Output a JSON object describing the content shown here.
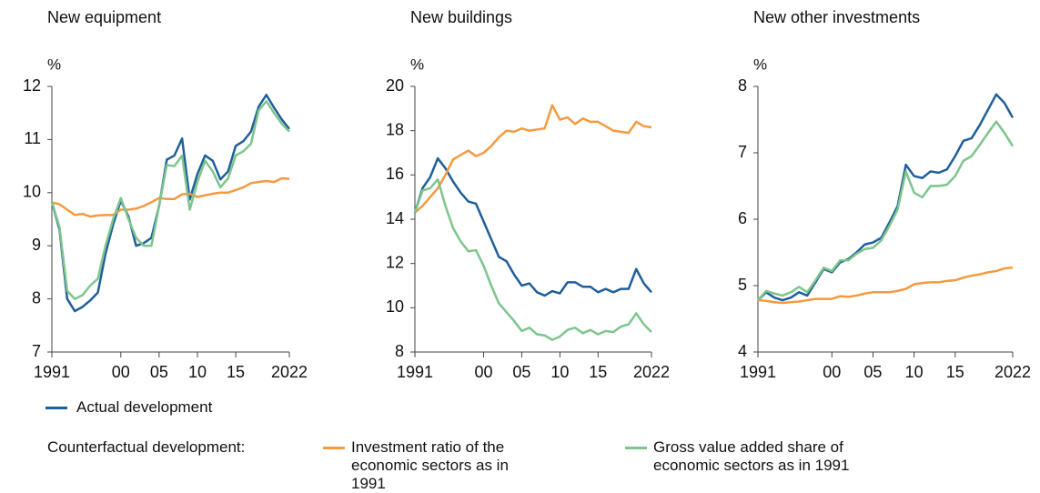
{
  "chart_data": [
    {
      "type": "line",
      "title": "New equipment",
      "ylabel": "%",
      "x": [
        1991,
        1992,
        1993,
        1994,
        1995,
        1996,
        1997,
        1998,
        1999,
        2000,
        2001,
        2002,
        2003,
        2004,
        2005,
        2006,
        2007,
        2008,
        2009,
        2010,
        2011,
        2012,
        2013,
        2014,
        2015,
        2016,
        2017,
        2018,
        2019,
        2020,
        2021,
        2022
      ],
      "xlim": [
        1991,
        2022
      ],
      "xticks": [
        1991,
        {
          "value": 2000,
          "label": "00"
        },
        {
          "value": 2005,
          "label": "05"
        },
        {
          "value": 2010,
          "label": "10"
        },
        {
          "value": 2015,
          "label": "15"
        },
        2022
      ],
      "ylim": [
        7,
        12
      ],
      "yticks": [
        7,
        8,
        9,
        10,
        11,
        12
      ],
      "series": [
        {
          "name": "Actual development",
          "color": "#1f5f99",
          "values": [
            9.83,
            9.3,
            8.0,
            7.77,
            7.85,
            7.97,
            8.12,
            8.85,
            9.4,
            9.85,
            9.55,
            9.0,
            9.05,
            9.15,
            9.75,
            10.62,
            10.7,
            11.02,
            9.87,
            10.35,
            10.7,
            10.6,
            10.25,
            10.4,
            10.88,
            10.97,
            11.15,
            11.62,
            11.84,
            11.6,
            11.38,
            11.2
          ]
        },
        {
          "name": "Investment ratio of the economic sectors as in 1991",
          "color": "#f59a3e",
          "values": [
            9.82,
            9.78,
            9.68,
            9.58,
            9.6,
            9.55,
            9.57,
            9.58,
            9.58,
            9.68,
            9.68,
            9.7,
            9.75,
            9.82,
            9.9,
            9.88,
            9.88,
            9.97,
            9.98,
            9.92,
            9.95,
            9.98,
            10.0,
            10.0,
            10.05,
            10.1,
            10.18,
            10.2,
            10.22,
            10.2,
            10.27,
            10.26
          ]
        },
        {
          "name": "Gross value added share of economic sectors as in 1991",
          "color": "#7dc58c",
          "values": [
            9.83,
            9.35,
            8.15,
            8.0,
            8.07,
            8.25,
            8.38,
            9.0,
            9.5,
            9.9,
            9.5,
            9.15,
            9.0,
            9.0,
            9.75,
            10.52,
            10.5,
            10.7,
            9.68,
            10.2,
            10.6,
            10.4,
            10.1,
            10.27,
            10.7,
            10.78,
            10.92,
            11.55,
            11.72,
            11.5,
            11.3,
            11.15
          ]
        }
      ]
    },
    {
      "type": "line",
      "title": "New buildings",
      "ylabel": "%",
      "x": [
        1991,
        1992,
        1993,
        1994,
        1995,
        1996,
        1997,
        1998,
        1999,
        2000,
        2001,
        2002,
        2003,
        2004,
        2005,
        2006,
        2007,
        2008,
        2009,
        2010,
        2011,
        2012,
        2013,
        2014,
        2015,
        2016,
        2017,
        2018,
        2019,
        2020,
        2021,
        2022
      ],
      "xlim": [
        1991,
        2022
      ],
      "xticks": [
        1991,
        {
          "value": 2000,
          "label": "00"
        },
        {
          "value": 2005,
          "label": "05"
        },
        {
          "value": 2010,
          "label": "10"
        },
        {
          "value": 2015,
          "label": "15"
        },
        2022
      ],
      "ylim": [
        8,
        20
      ],
      "yticks": [
        8,
        10,
        12,
        14,
        16,
        18,
        20
      ],
      "series": [
        {
          "name": "Actual development",
          "color": "#1f5f99",
          "values": [
            14.3,
            15.4,
            15.9,
            16.75,
            16.3,
            15.7,
            15.2,
            14.8,
            14.7,
            13.9,
            13.1,
            12.3,
            12.1,
            11.5,
            11.0,
            11.1,
            10.7,
            10.55,
            10.75,
            10.65,
            11.15,
            11.15,
            10.95,
            10.95,
            10.7,
            10.85,
            10.7,
            10.85,
            10.85,
            11.75,
            11.1,
            10.7
          ]
        },
        {
          "name": "Investment ratio of the economic sectors as in 1991",
          "color": "#f59a3e",
          "values": [
            14.3,
            14.6,
            15.0,
            15.4,
            16.0,
            16.7,
            16.9,
            17.1,
            16.85,
            17.0,
            17.3,
            17.7,
            18.0,
            17.95,
            18.1,
            18.0,
            18.05,
            18.1,
            19.15,
            18.5,
            18.6,
            18.3,
            18.55,
            18.4,
            18.4,
            18.2,
            18.0,
            17.95,
            17.9,
            18.4,
            18.2,
            18.15
          ]
        },
        {
          "name": "Gross value added share of economic sectors as in 1991",
          "color": "#7dc58c",
          "values": [
            14.3,
            15.3,
            15.4,
            15.8,
            14.6,
            13.6,
            13.0,
            12.55,
            12.6,
            11.9,
            11.0,
            10.2,
            9.8,
            9.4,
            8.95,
            9.1,
            8.8,
            8.75,
            8.55,
            8.7,
            9.0,
            9.1,
            8.85,
            9.0,
            8.8,
            8.95,
            8.9,
            9.15,
            9.25,
            9.75,
            9.25,
            8.9
          ]
        }
      ]
    },
    {
      "type": "line",
      "title": "New other investments",
      "ylabel": "%",
      "x": [
        1991,
        1992,
        1993,
        1994,
        1995,
        1996,
        1997,
        1998,
        1999,
        2000,
        2001,
        2002,
        2003,
        2004,
        2005,
        2006,
        2007,
        2008,
        2009,
        2010,
        2011,
        2012,
        2013,
        2014,
        2015,
        2016,
        2017,
        2018,
        2019,
        2020,
        2021,
        2022
      ],
      "xlim": [
        1991,
        2022
      ],
      "xticks": [
        1991,
        {
          "value": 2000,
          "label": "00"
        },
        {
          "value": 2005,
          "label": "05"
        },
        {
          "value": 2010,
          "label": "10"
        },
        {
          "value": 2015,
          "label": "15"
        },
        2022
      ],
      "ylim": [
        4,
        8
      ],
      "yticks": [
        4,
        5,
        6,
        7,
        8
      ],
      "series": [
        {
          "name": "Actual development",
          "color": "#1f5f99",
          "values": [
            4.78,
            4.9,
            4.82,
            4.78,
            4.82,
            4.9,
            4.85,
            5.05,
            5.25,
            5.2,
            5.35,
            5.4,
            5.5,
            5.62,
            5.65,
            5.72,
            5.95,
            6.2,
            6.82,
            6.65,
            6.62,
            6.72,
            6.7,
            6.75,
            6.95,
            7.18,
            7.22,
            7.42,
            7.65,
            7.88,
            7.75,
            7.53
          ]
        },
        {
          "name": "Investment ratio of the economic sectors as in 1991",
          "color": "#f59a3e",
          "values": [
            4.78,
            4.77,
            4.75,
            4.74,
            4.75,
            4.76,
            4.78,
            4.8,
            4.8,
            4.8,
            4.84,
            4.83,
            4.85,
            4.88,
            4.9,
            4.9,
            4.9,
            4.92,
            4.95,
            5.02,
            5.04,
            5.05,
            5.05,
            5.07,
            5.08,
            5.12,
            5.15,
            5.17,
            5.2,
            5.22,
            5.26,
            5.27
          ]
        },
        {
          "name": "Gross value added share of economic sectors as in 1991",
          "color": "#7dc58c",
          "values": [
            4.78,
            4.92,
            4.88,
            4.85,
            4.9,
            4.98,
            4.9,
            5.08,
            5.27,
            5.22,
            5.38,
            5.38,
            5.48,
            5.55,
            5.57,
            5.68,
            5.9,
            6.15,
            6.72,
            6.4,
            6.33,
            6.5,
            6.5,
            6.52,
            6.65,
            6.88,
            6.95,
            7.12,
            7.3,
            7.47,
            7.3,
            7.1
          ]
        }
      ]
    }
  ],
  "legend": {
    "group_label": "Counterfactual development:"
  }
}
